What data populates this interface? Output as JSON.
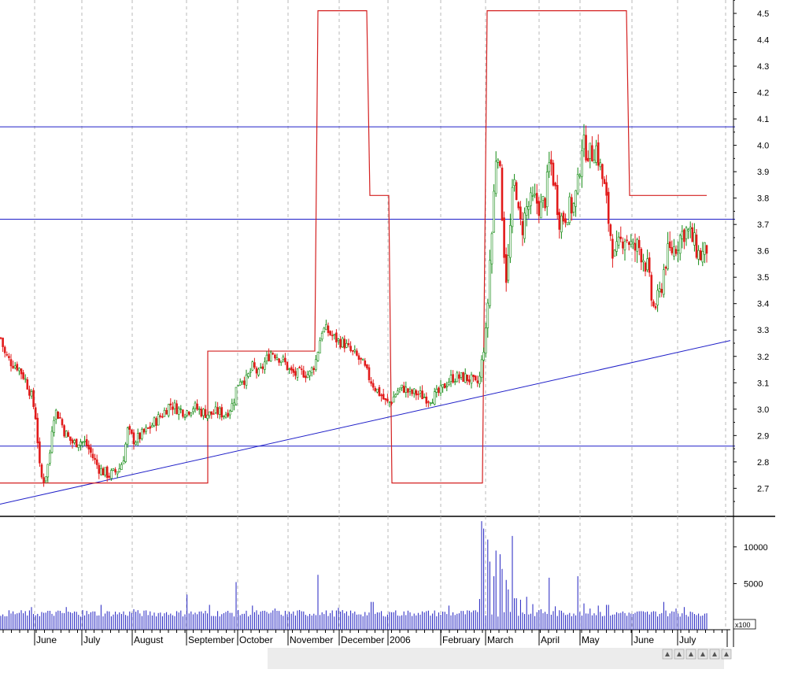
{
  "chart_data": [
    {
      "type": "candlestick",
      "title": "",
      "ylim": [
        2.6,
        4.55
      ],
      "y_ticks": [
        "2.7",
        "2.8",
        "2.9",
        "3.0",
        "3.1",
        "3.2",
        "3.3",
        "3.4",
        "3.5",
        "3.6",
        "3.7",
        "3.8",
        "3.9",
        "4.0",
        "4.1",
        "4.2",
        "4.3",
        "4.4",
        "4.5"
      ],
      "x_labels": [
        "June",
        "July",
        "August",
        "September",
        "October",
        "November",
        "December",
        "2006",
        "February",
        "March",
        "April",
        "May",
        "June",
        "July"
      ],
      "grid": "vertical dotted",
      "colors": {
        "up": "#138a13",
        "down": "#e21b1b",
        "level": "#d42020",
        "lines": "#1f1fc8"
      },
      "price_anchors": [
        [
          0,
          3.27
        ],
        [
          5,
          3.21
        ],
        [
          12,
          3.18
        ],
        [
          22,
          3.16
        ],
        [
          30,
          3.12
        ],
        [
          38,
          3.06
        ],
        [
          44,
          2.98
        ],
        [
          48,
          2.84
        ],
        [
          50,
          2.75
        ],
        [
          54,
          2.73
        ],
        [
          58,
          2.76
        ],
        [
          62,
          2.82
        ],
        [
          66,
          2.97
        ],
        [
          70,
          2.99
        ],
        [
          75,
          2.97
        ],
        [
          80,
          2.92
        ],
        [
          86,
          2.89
        ],
        [
          92,
          2.87
        ],
        [
          100,
          2.88
        ],
        [
          108,
          2.87
        ],
        [
          115,
          2.83
        ],
        [
          120,
          2.8
        ],
        [
          126,
          2.77
        ],
        [
          132,
          2.76
        ],
        [
          138,
          2.75
        ],
        [
          145,
          2.76
        ],
        [
          152,
          2.78
        ],
        [
          157,
          2.83
        ],
        [
          161,
          2.92
        ],
        [
          165,
          2.9
        ],
        [
          170,
          2.88
        ],
        [
          178,
          2.9
        ],
        [
          186,
          2.92
        ],
        [
          195,
          2.95
        ],
        [
          205,
          2.98
        ],
        [
          215,
          3.02
        ],
        [
          225,
          3.0
        ],
        [
          235,
          2.99
        ],
        [
          245,
          3.01
        ],
        [
          255,
          2.99
        ],
        [
          265,
          2.98
        ],
        [
          275,
          2.99
        ],
        [
          285,
          2.98
        ],
        [
          295,
          3.02
        ],
        [
          300,
          3.09
        ],
        [
          305,
          3.12
        ],
        [
          312,
          3.11
        ],
        [
          320,
          3.16
        ],
        [
          328,
          3.13
        ],
        [
          336,
          3.18
        ],
        [
          344,
          3.22
        ],
        [
          352,
          3.2
        ],
        [
          360,
          3.18
        ],
        [
          368,
          3.14
        ],
        [
          376,
          3.13
        ],
        [
          384,
          3.14
        ],
        [
          392,
          3.13
        ],
        [
          400,
          3.18
        ],
        [
          404,
          3.24
        ],
        [
          408,
          3.3
        ],
        [
          414,
          3.3
        ],
        [
          420,
          3.28
        ],
        [
          428,
          3.26
        ],
        [
          436,
          3.25
        ],
        [
          444,
          3.22
        ],
        [
          452,
          3.2
        ],
        [
          460,
          3.17
        ],
        [
          468,
          3.12
        ],
        [
          476,
          3.08
        ],
        [
          484,
          3.05
        ],
        [
          490,
          3.02
        ],
        [
          496,
          3.03
        ],
        [
          504,
          3.07
        ],
        [
          512,
          3.08
        ],
        [
          520,
          3.06
        ],
        [
          528,
          3.06
        ],
        [
          536,
          3.05
        ],
        [
          544,
          3.04
        ],
        [
          552,
          3.05
        ],
        [
          560,
          3.07
        ],
        [
          566,
          3.1
        ],
        [
          574,
          3.12
        ],
        [
          582,
          3.12
        ],
        [
          590,
          3.12
        ],
        [
          598,
          3.11
        ],
        [
          604,
          3.09
        ],
        [
          608,
          3.11
        ],
        [
          612,
          3.2
        ],
        [
          616,
          3.28
        ],
        [
          619,
          3.42
        ],
        [
          622,
          3.6
        ],
        [
          625,
          3.7
        ],
        [
          628,
          3.92
        ],
        [
          631,
          4.02
        ],
        [
          634,
          3.9
        ],
        [
          637,
          3.75
        ],
        [
          640,
          3.58
        ],
        [
          643,
          3.48
        ],
        [
          646,
          3.62
        ],
        [
          650,
          3.8
        ],
        [
          654,
          3.88
        ],
        [
          658,
          3.72
        ],
        [
          662,
          3.68
        ],
        [
          668,
          3.76
        ],
        [
          674,
          3.78
        ],
        [
          680,
          3.79
        ],
        [
          686,
          3.76
        ],
        [
          692,
          3.8
        ],
        [
          698,
          3.95
        ],
        [
          704,
          3.84
        ],
        [
          710,
          3.72
        ],
        [
          716,
          3.73
        ],
        [
          722,
          3.76
        ],
        [
          728,
          3.77
        ],
        [
          734,
          3.86
        ],
        [
          738,
          4.01
        ],
        [
          742,
          3.99
        ],
        [
          746,
          3.98
        ],
        [
          750,
          3.96
        ],
        [
          756,
          4.0
        ],
        [
          760,
          3.94
        ],
        [
          764,
          3.88
        ],
        [
          768,
          3.82
        ],
        [
          772,
          3.72
        ],
        [
          776,
          3.64
        ],
        [
          780,
          3.57
        ],
        [
          786,
          3.62
        ],
        [
          792,
          3.66
        ],
        [
          798,
          3.64
        ],
        [
          804,
          3.6
        ],
        [
          810,
          3.62
        ],
        [
          816,
          3.58
        ],
        [
          822,
          3.53
        ],
        [
          826,
          3.43
        ],
        [
          830,
          3.38
        ],
        [
          834,
          3.4
        ],
        [
          838,
          3.44
        ],
        [
          842,
          3.52
        ],
        [
          846,
          3.58
        ],
        [
          852,
          3.6
        ],
        [
          858,
          3.62
        ],
        [
          864,
          3.66
        ],
        [
          870,
          3.68
        ],
        [
          876,
          3.66
        ],
        [
          882,
          3.62
        ],
        [
          888,
          3.58
        ],
        [
          894,
          3.59
        ],
        [
          898,
          3.62
        ]
      ],
      "level_line": [
        [
          0,
          2.72
        ],
        [
          264,
          2.72
        ],
        [
          264,
          3.22
        ],
        [
          400,
          3.22
        ],
        [
          404,
          4.51
        ],
        [
          466,
          4.51
        ],
        [
          470,
          3.81
        ],
        [
          494,
          3.81
        ],
        [
          498,
          2.72
        ],
        [
          613,
          2.72
        ],
        [
          619,
          4.51
        ],
        [
          796,
          4.51
        ],
        [
          800,
          3.81
        ],
        [
          898,
          3.81
        ]
      ],
      "horizontal_lines": [
        4.07,
        3.72,
        2.86
      ],
      "trendline": [
        [
          0,
          2.64
        ],
        [
          928,
          3.26
        ]
      ],
      "volume": {
        "ylim": [
          0,
          15000
        ],
        "y_ticks": [
          "5000",
          "10000"
        ],
        "unit_label": "x100",
        "anchors": [
          [
            0,
            600
          ],
          [
            40,
            1800
          ],
          [
            83,
            1800
          ],
          [
            105,
            1400
          ],
          [
            127,
            2100
          ],
          [
            170,
            1500
          ],
          [
            237,
            3500
          ],
          [
            266,
            2100
          ],
          [
            299,
            5200
          ],
          [
            320,
            2000
          ],
          [
            348,
            1600
          ],
          [
            379,
            1400
          ],
          [
            404,
            6200
          ],
          [
            430,
            1700
          ],
          [
            472,
            2500
          ],
          [
            498,
            1100
          ],
          [
            530,
            1000
          ],
          [
            570,
            2000
          ],
          [
            598,
            1100
          ],
          [
            608,
            2900
          ],
          [
            611,
            13500
          ],
          [
            614,
            12500
          ],
          [
            618,
            11000
          ],
          [
            622,
            8000
          ],
          [
            626,
            6000
          ],
          [
            630,
            9500
          ],
          [
            634,
            9000
          ],
          [
            638,
            7000
          ],
          [
            642,
            5500
          ],
          [
            646,
            4200
          ],
          [
            650,
            11500
          ],
          [
            654,
            3000
          ],
          [
            660,
            2800
          ],
          [
            668,
            3200
          ],
          [
            676,
            2200
          ],
          [
            686,
            1500
          ],
          [
            697,
            5800
          ],
          [
            704,
            1900
          ],
          [
            712,
            1300
          ],
          [
            724,
            1000
          ],
          [
            733,
            6000
          ],
          [
            740,
            2300
          ],
          [
            748,
            1600
          ],
          [
            760,
            2000
          ],
          [
            771,
            2100
          ],
          [
            782,
            1100
          ],
          [
            790,
            1200
          ],
          [
            800,
            900
          ],
          [
            820,
            1100
          ],
          [
            842,
            2500
          ],
          [
            858,
            1600
          ],
          [
            868,
            1800
          ],
          [
            880,
            1100
          ],
          [
            895,
            900
          ]
        ]
      }
    }
  ]
}
